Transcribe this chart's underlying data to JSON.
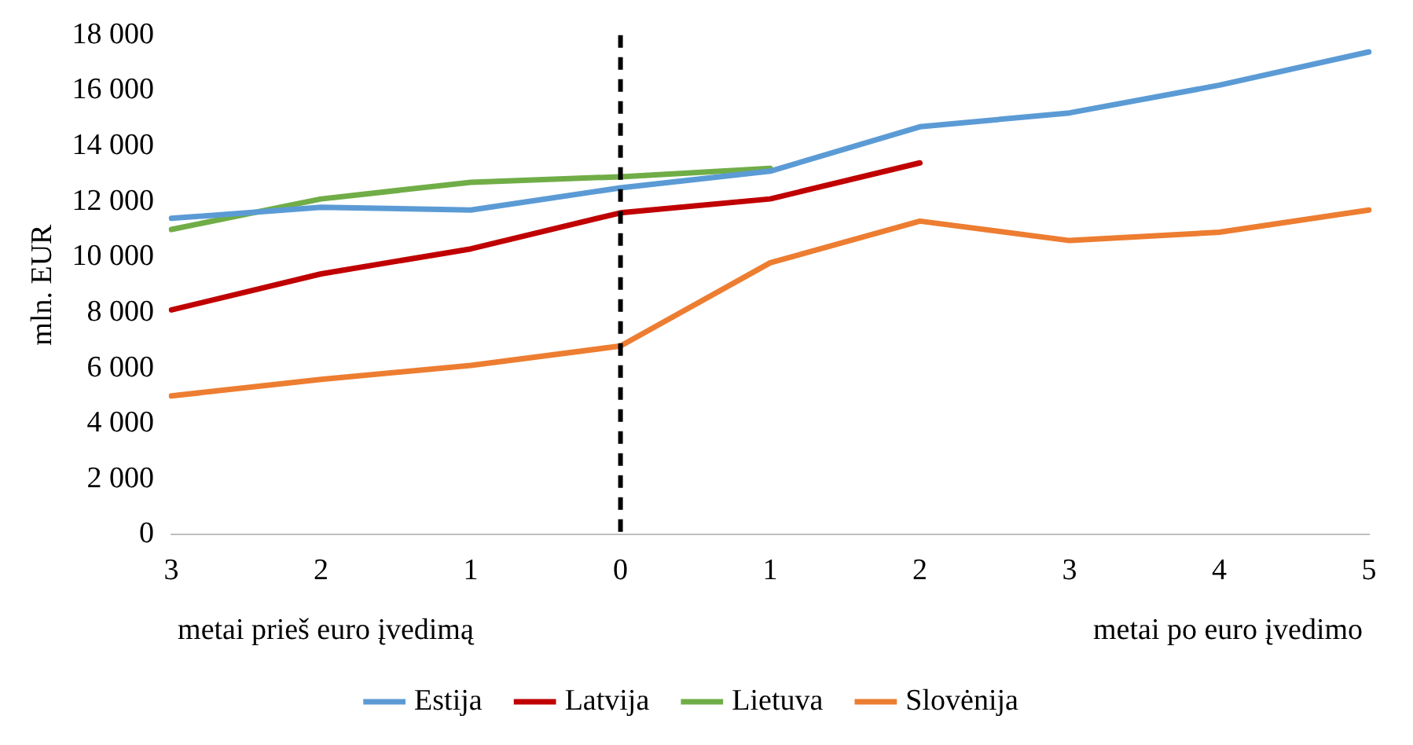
{
  "chart_data": {
    "type": "line",
    "ylabel": "mln. EUR",
    "categories": [
      "3",
      "2",
      "1",
      "0",
      "1",
      "2",
      "3",
      "4",
      "5"
    ],
    "series": [
      {
        "name": "Estija",
        "color": "#5b9bd5",
        "values": [
          11400,
          11800,
          11700,
          12500,
          13100,
          14700,
          15200,
          16200,
          17400
        ]
      },
      {
        "name": "Latvija",
        "color": "#c00000",
        "values": [
          8100,
          9400,
          10300,
          11600,
          12100,
          13400,
          null,
          null,
          null
        ]
      },
      {
        "name": "Lietuva",
        "color": "#70ad47",
        "values": [
          11000,
          12100,
          12700,
          12900,
          13200,
          null,
          null,
          null,
          null
        ]
      },
      {
        "name": "Slovėnija",
        "color": "#ed7d31",
        "values": [
          5000,
          5600,
          6100,
          6800,
          9800,
          11300,
          10600,
          10900,
          11700
        ]
      }
    ],
    "ylim": [
      0,
      18000
    ],
    "yticks": [
      {
        "value": 0,
        "label": "0"
      },
      {
        "value": 2000,
        "label": "2 000"
      },
      {
        "value": 4000,
        "label": "4 000"
      },
      {
        "value": 6000,
        "label": "6 000"
      },
      {
        "value": 8000,
        "label": "8 000"
      },
      {
        "value": 10000,
        "label": "10 000"
      },
      {
        "value": 12000,
        "label": "12 000"
      },
      {
        "value": 14000,
        "label": "14 000"
      },
      {
        "value": 16000,
        "label": "16 000"
      },
      {
        "value": 18000,
        "label": "18 000"
      }
    ],
    "ref_lines": [
      {
        "axis": "x",
        "value": "0",
        "color": "#000000",
        "line_style": "dashed"
      }
    ],
    "annotations": [
      "metai prieš euro įvedimą",
      "metai po euro įvedimo"
    ],
    "grid": false,
    "legend": "bottom",
    "marker": "none",
    "line_style": "solid"
  }
}
